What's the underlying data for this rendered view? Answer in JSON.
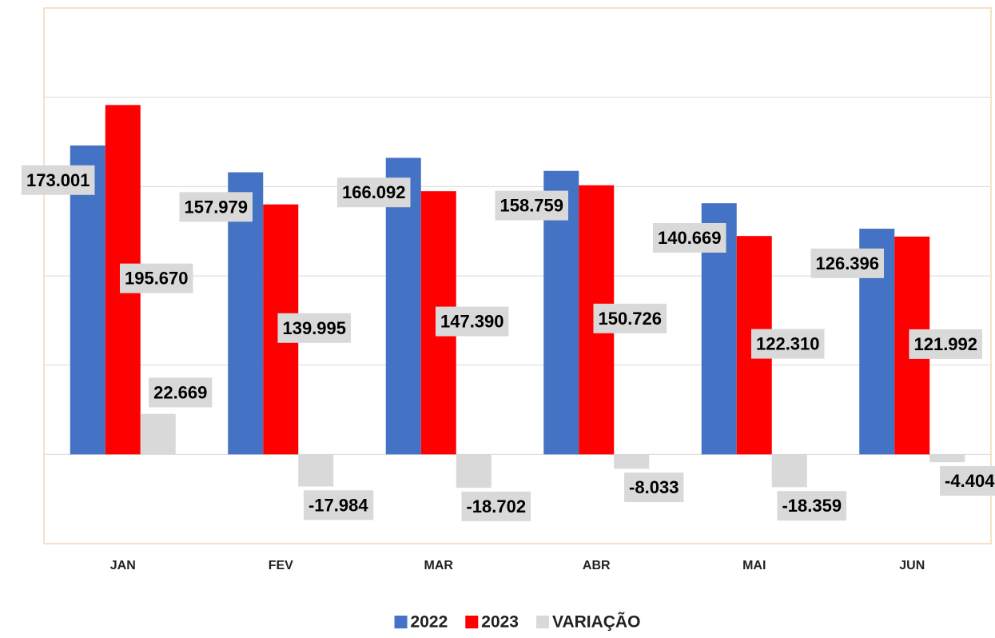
{
  "chart_data": {
    "type": "bar",
    "categories": [
      "JAN",
      "FEV",
      "MAR",
      "ABR",
      "MAI",
      "JUN"
    ],
    "series": [
      {
        "name": "2022",
        "color": "#4472c4",
        "values": [
          173001,
          157979,
          166092,
          158759,
          140669,
          126396
        ],
        "value_labels": [
          "173.001",
          "157.979",
          "166.092",
          "158.759",
          "140.669",
          "126.396"
        ]
      },
      {
        "name": "2023",
        "color": "#ff0000",
        "values": [
          195670,
          139995,
          147390,
          150726,
          122310,
          121992
        ],
        "value_labels": [
          "195.670",
          "139.995",
          "147.390",
          "150.726",
          "122.310",
          "121.992"
        ]
      },
      {
        "name": "VARIAÇÃO",
        "color": "#d9d9d9",
        "values": [
          22669,
          -17984,
          -18702,
          -8033,
          -18359,
          -4404
        ],
        "value_labels": [
          "22.669",
          "-17.984",
          "-18.702",
          "-8.033",
          "-18.359",
          "-4.404"
        ]
      }
    ],
    "ylim": [
      -50000,
      250000
    ],
    "yticks": [
      0,
      50000,
      100000,
      150000,
      200000
    ],
    "grid": true,
    "legend": "bottom"
  }
}
